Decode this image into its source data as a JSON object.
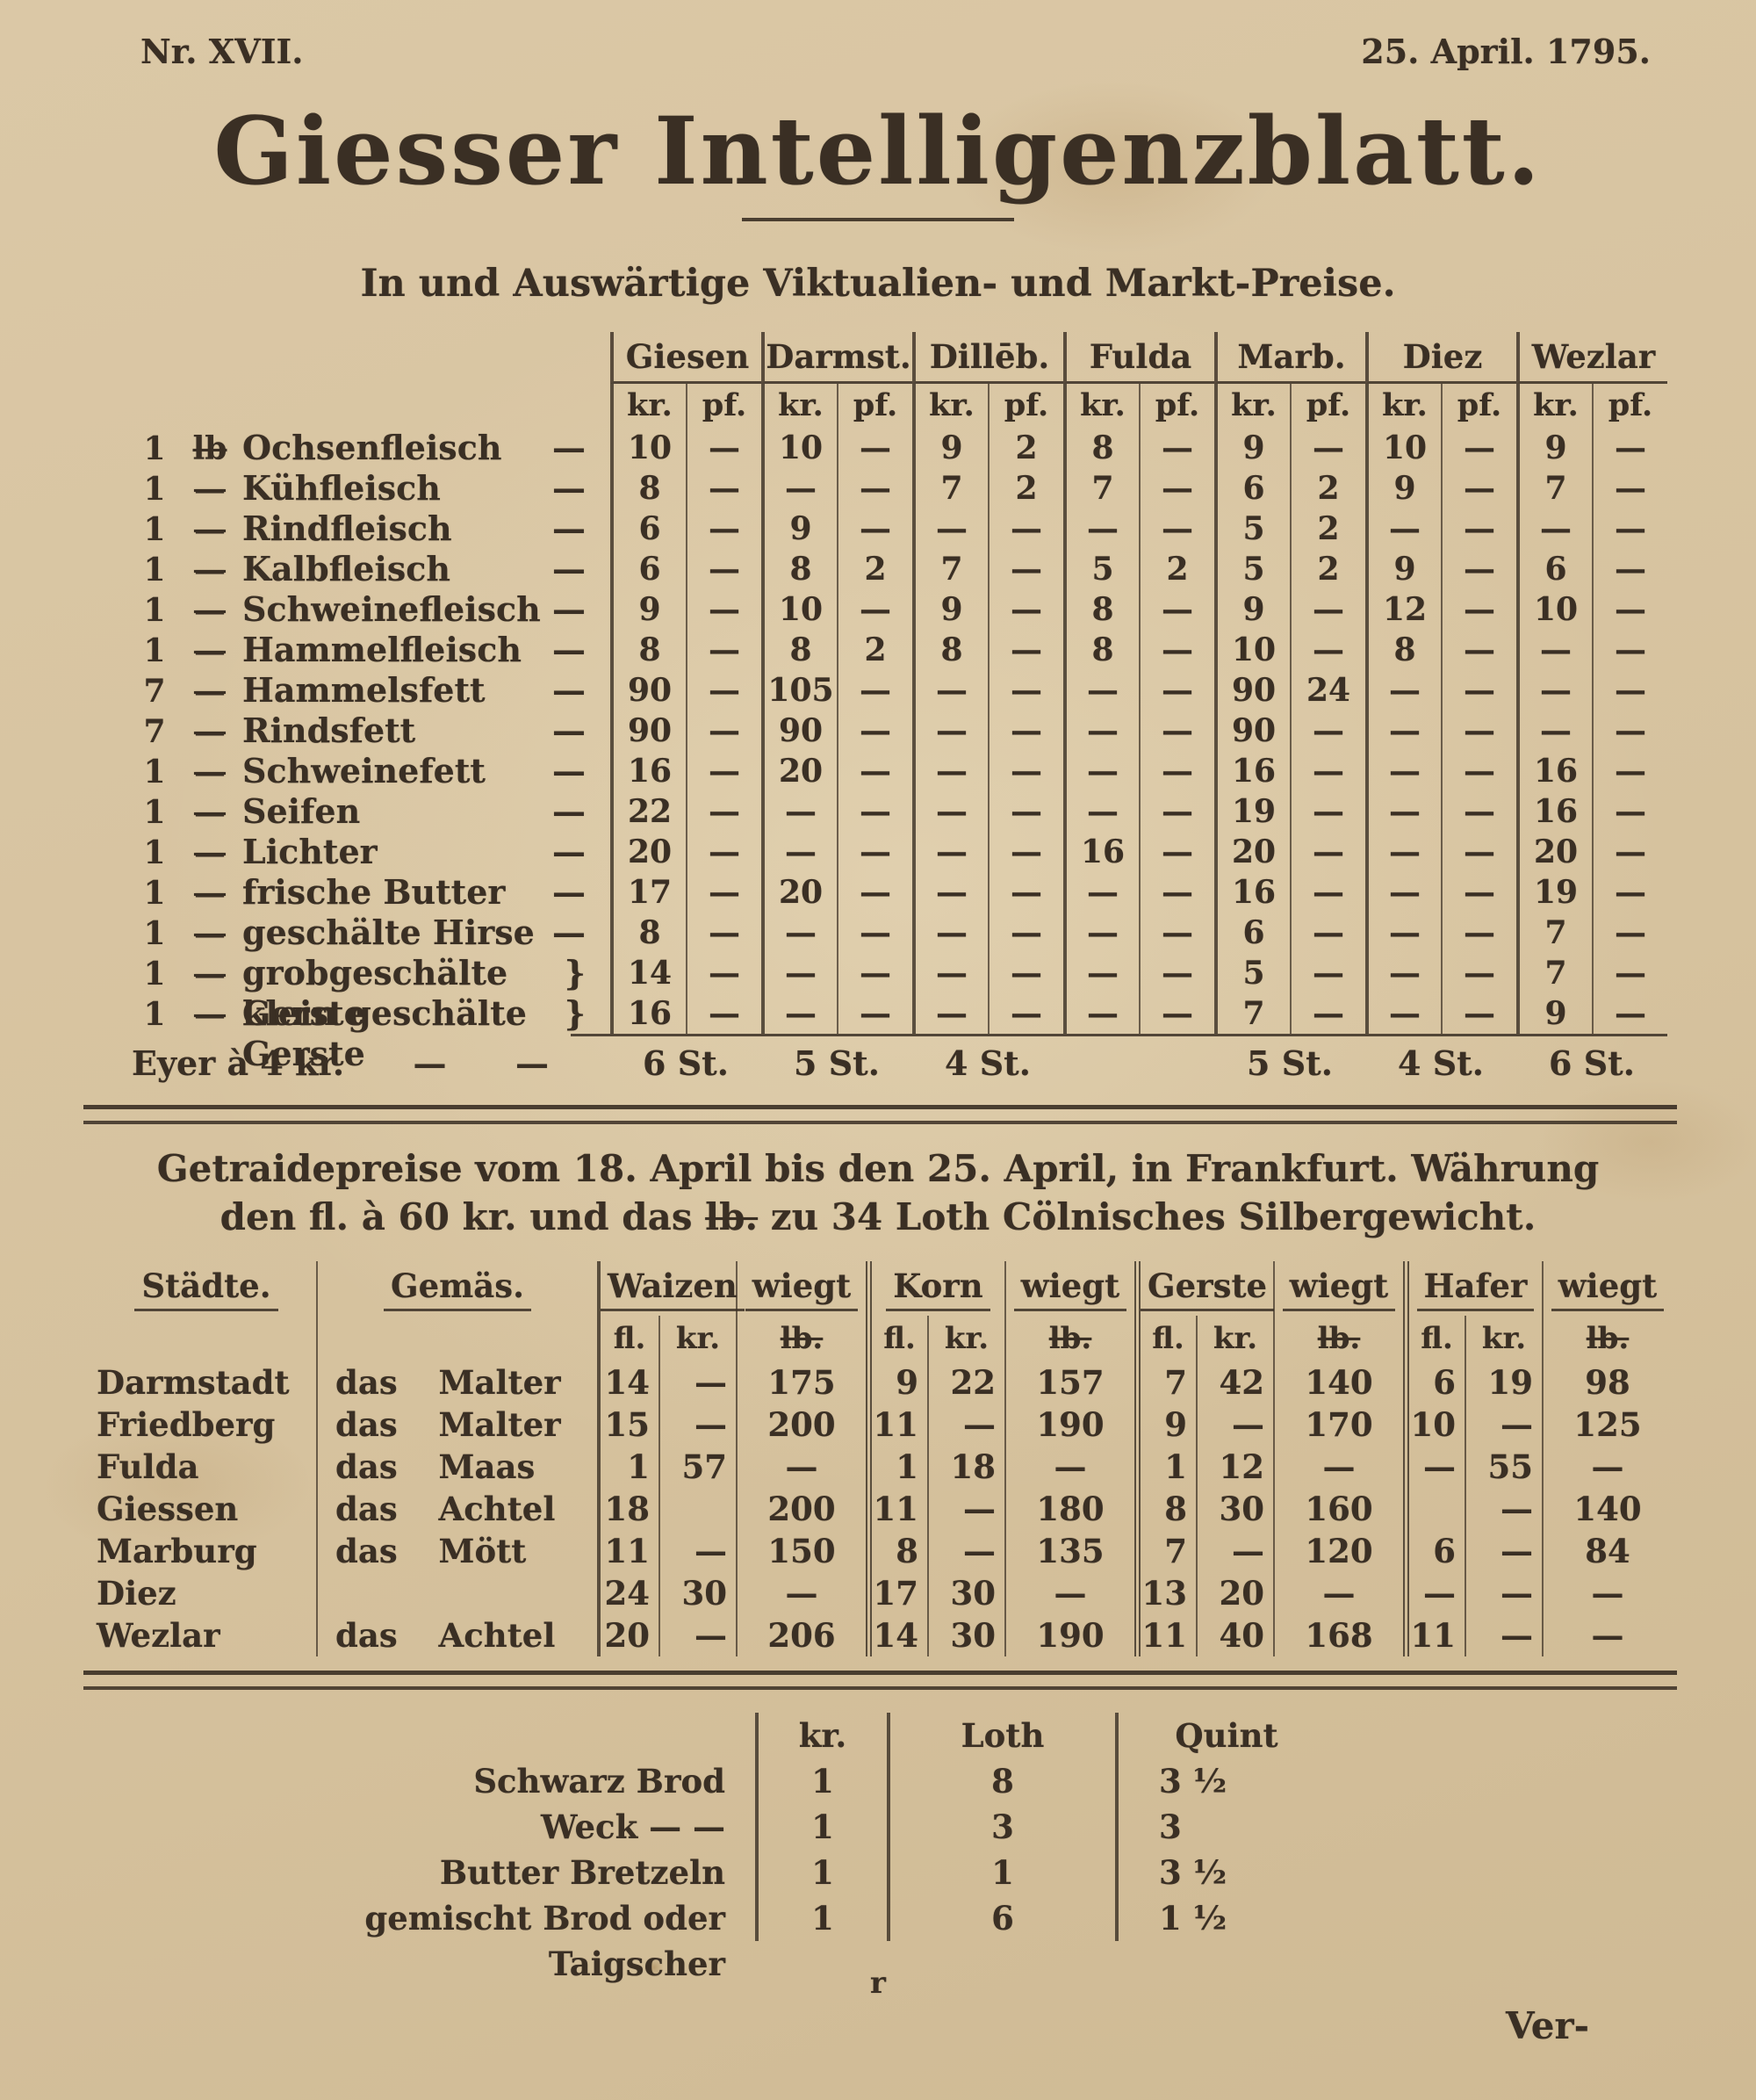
{
  "page": {
    "issue_no": "Nr.  XVII.",
    "date": "25. April. 1795.",
    "title": "Giesser Intelligenzblatt.",
    "section1_heading": "In und Auswärtige Viktualien- und Markt-Preise."
  },
  "market_table": {
    "cities": [
      "Giesen",
      "Darmst.",
      "Dillēb.",
      "Fulda",
      "Marb.",
      "Diez",
      "Wezlar"
    ],
    "unit_headers": [
      "kr.",
      "pf."
    ],
    "rows": [
      {
        "qty": "1",
        "unit": "lb",
        "name": "Ochsenfleisch",
        "tail": "—",
        "values": [
          "10",
          "—",
          "10",
          "—",
          "9",
          "2",
          "8",
          "—",
          "9",
          "—",
          "10",
          "—",
          "9",
          "—"
        ]
      },
      {
        "qty": "1",
        "unit": "—",
        "name": "Kühfleisch",
        "tail": "—",
        "values": [
          "8",
          "—",
          "—",
          "—",
          "7",
          "2",
          "7",
          "—",
          "6",
          "2",
          "9",
          "—",
          "7",
          "—"
        ]
      },
      {
        "qty": "1",
        "unit": "—",
        "name": "Rindfleisch",
        "tail": "—",
        "values": [
          "6",
          "—",
          "9",
          "—",
          "—",
          "—",
          "—",
          "—",
          "5",
          "2",
          "—",
          "—",
          "—",
          "—"
        ]
      },
      {
        "qty": "1",
        "unit": "—",
        "name": "Kalbfleisch",
        "tail": "—",
        "values": [
          "6",
          "—",
          "8",
          "2",
          "7",
          "—",
          "5",
          "2",
          "5",
          "2",
          "9",
          "—",
          "6",
          "—"
        ]
      },
      {
        "qty": "1",
        "unit": "—",
        "name": "Schweinefleisch",
        "tail": "—",
        "values": [
          "9",
          "—",
          "10",
          "—",
          "9",
          "—",
          "8",
          "—",
          "9",
          "—",
          "12",
          "—",
          "10",
          "—"
        ]
      },
      {
        "qty": "1",
        "unit": "—",
        "name": "Hammelfleisch",
        "tail": "—",
        "values": [
          "8",
          "—",
          "8",
          "2",
          "8",
          "—",
          "8",
          "—",
          "10",
          "—",
          "8",
          "—",
          "—",
          "—"
        ]
      },
      {
        "qty": "7",
        "unit": "—",
        "name": "Hammelsfett",
        "tail": "—",
        "values": [
          "90",
          "—",
          "105",
          "—",
          "—",
          "—",
          "—",
          "—",
          "90",
          "24",
          "—",
          "—",
          "—",
          "—"
        ]
      },
      {
        "qty": "7",
        "unit": "—",
        "name": "Rindsfett",
        "tail": "—",
        "values": [
          "90",
          "—",
          "90",
          "—",
          "—",
          "—",
          "—",
          "—",
          "90",
          "—",
          "—",
          "—",
          "—",
          "—"
        ]
      },
      {
        "qty": "1",
        "unit": "—",
        "name": "Schweinefett",
        "tail": "—",
        "values": [
          "16",
          "—",
          "20",
          "—",
          "—",
          "—",
          "—",
          "—",
          "16",
          "—",
          "—",
          "—",
          "16",
          "—"
        ]
      },
      {
        "qty": "1",
        "unit": "—",
        "name": "Seifen",
        "tail": "—",
        "values": [
          "22",
          "—",
          "—",
          "—",
          "—",
          "—",
          "—",
          "—",
          "19",
          "—",
          "—",
          "—",
          "16",
          "—"
        ]
      },
      {
        "qty": "1",
        "unit": "—",
        "name": "Lichter",
        "tail": "—",
        "values": [
          "20",
          "—",
          "—",
          "—",
          "—",
          "—",
          "16",
          "—",
          "20",
          "—",
          "—",
          "—",
          "20",
          "—"
        ]
      },
      {
        "qty": "1",
        "unit": "—",
        "name": "frische Butter",
        "tail": "—",
        "values": [
          "17",
          "—",
          "20",
          "—",
          "—",
          "—",
          "—",
          "—",
          "16",
          "—",
          "—",
          "—",
          "19",
          "—"
        ]
      },
      {
        "qty": "1",
        "unit": "—",
        "name": "geschälte Hirse",
        "tail": "—",
        "values": [
          "8",
          "—",
          "—",
          "—",
          "—",
          "—",
          "—",
          "—",
          "6",
          "—",
          "—",
          "—",
          "7",
          "—"
        ]
      },
      {
        "qty": "1",
        "unit": "—",
        "name": "grobgeschälte Gerste",
        "tail": "}",
        "values": [
          "14",
          "—",
          "—",
          "—",
          "—",
          "—",
          "—",
          "—",
          "5",
          "—",
          "—",
          "—",
          "7",
          "—"
        ]
      },
      {
        "qty": "1",
        "unit": "—",
        "name": "klein geschälte Gerste",
        "tail": "}",
        "values": [
          "16",
          "—",
          "—",
          "—",
          "—",
          "—",
          "—",
          "—",
          "7",
          "—",
          "—",
          "—",
          "9",
          "—"
        ]
      }
    ],
    "eggs_row": {
      "label": "Eyer à 4 kr.",
      "dash1": "—",
      "dash2": "—",
      "values": [
        "6 St.",
        "5 St.",
        "4 St.",
        "",
        "5 St.",
        "4 St.",
        "6 St."
      ]
    }
  },
  "grain_section": {
    "heading_line1": "Getraidepreise vom 18. April bis den 25. April, in Frankfurt. Währung",
    "heading_line2a": "den fl. à 60 kr. und das ",
    "heading_line2b": "lb.",
    "heading_line2c": " zu 34 Loth Cölnisches Silbergewicht."
  },
  "grain_table": {
    "col_city": "Städte.",
    "col_measure": "Gemäs.",
    "grains": [
      "Waizen",
      "Korn",
      "Gerste",
      "Hafer"
    ],
    "wiegt_label": "wiegt",
    "subheaders": {
      "fl": "fl.",
      "kr": "kr.",
      "lb": "lb."
    },
    "rows": [
      {
        "city": "Darmstadt",
        "measure": "das Malter",
        "values": [
          "14",
          "—",
          "175",
          "9",
          "22",
          "157",
          "7",
          "42",
          "140",
          "6",
          "19",
          "98"
        ]
      },
      {
        "city": "Friedberg",
        "measure": "das Malter",
        "values": [
          "15",
          "—",
          "200",
          "11",
          "—",
          "190",
          "9",
          "—",
          "170",
          "10",
          "—",
          "125"
        ]
      },
      {
        "city": "Fulda",
        "measure": "das Maas",
        "values": [
          "1",
          "57",
          "—",
          "1",
          "18",
          "—",
          "1",
          "12",
          "—",
          "—",
          "55",
          "—"
        ]
      },
      {
        "city": "Giessen",
        "measure": "das Achtel",
        "values": [
          "18",
          "",
          "200",
          "11",
          "—",
          "180",
          "8",
          "30",
          "160",
          "",
          "—",
          "140"
        ]
      },
      {
        "city": "Marburg",
        "measure": "das Mött",
        "values": [
          "11",
          "—",
          "150",
          "8",
          "—",
          "135",
          "7",
          "—",
          "120",
          "6",
          "—",
          "84"
        ]
      },
      {
        "city": "Diez",
        "measure": "",
        "values": [
          "24",
          "30",
          "—",
          "17",
          "30",
          "—",
          "13",
          "20",
          "—",
          "—",
          "—",
          "—"
        ]
      },
      {
        "city": "Wezlar",
        "measure": "das Achtel",
        "values": [
          "20",
          "—",
          "206",
          "14",
          "30",
          "190",
          "11",
          "40",
          "168",
          "11",
          "—",
          "—"
        ]
      }
    ]
  },
  "bread_table": {
    "headers": {
      "kr": "kr.",
      "loth": "Loth",
      "quint": "Quint"
    },
    "rows": [
      {
        "name": "Schwarz Brod",
        "kr": "1",
        "loth": "8",
        "quint": "3 ½"
      },
      {
        "name": "Weck  —  —",
        "kr": "1",
        "loth": "3",
        "quint": "3"
      },
      {
        "name": "Butter Bretzeln",
        "kr": "1",
        "loth": "1",
        "quint": "3 ½"
      },
      {
        "name": "gemischt Brod oder Taigscher",
        "kr": "1",
        "loth": "6",
        "quint": "1 ½"
      }
    ]
  },
  "footer": {
    "signature_mark": "r",
    "catchword": "Ver-"
  }
}
